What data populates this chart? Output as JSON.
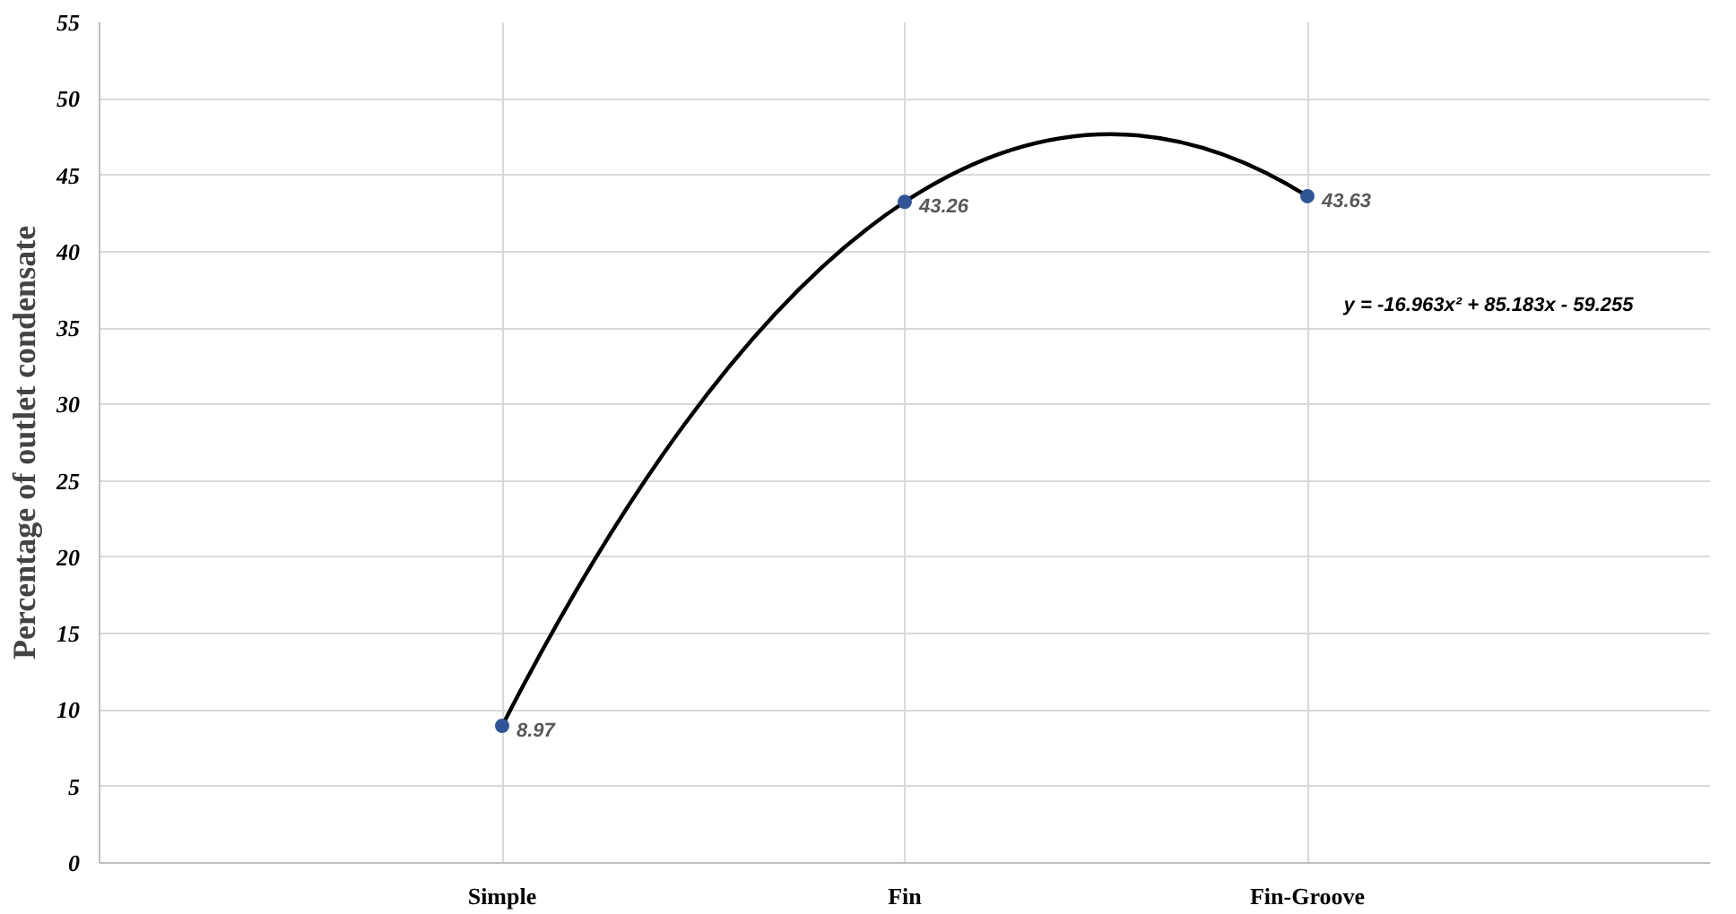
{
  "chart_data": {
    "type": "line",
    "ylabel": "Percentage of outlet condensate",
    "categories": [
      "Simple",
      "Fin",
      "Fin-Groove"
    ],
    "ylim": [
      0,
      55
    ],
    "yticks": [
      0,
      5,
      10,
      15,
      20,
      25,
      30,
      35,
      40,
      45,
      50,
      55
    ],
    "grid": true,
    "marker": "circle",
    "data_labels": true,
    "series": [
      {
        "color": "#000000",
        "line_style": "solid",
        "values": [
          8.97,
          43.26,
          43.63
        ]
      }
    ],
    "annotations": [
      "y = -16.963x² + 85.183x - 59.255"
    ]
  }
}
